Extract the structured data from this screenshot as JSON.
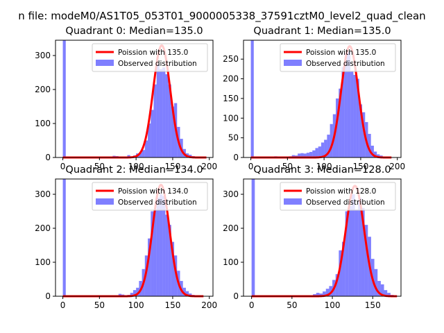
{
  "figure": {
    "suptitle": "n file: modeM0/AS1T05_053T01_9000005338_37591cztM0_level2_quad_clean"
  },
  "colors": {
    "hist": "#0000ff",
    "hist_opacity": 0.5,
    "fit": "#ff0000",
    "axis": "#000000"
  },
  "chart_data": [
    {
      "type": "bar",
      "title": "Quadrant 0: Median=135.0",
      "legend": [
        "Poission with 135.0",
        "Observed distribution"
      ],
      "legend_position": "top-right",
      "xlim": [
        -10,
        205
      ],
      "ylim": [
        0,
        345
      ],
      "xticks": [
        0,
        50,
        100,
        150,
        200
      ],
      "yticks": [
        0,
        100,
        200,
        300
      ],
      "hist_bin_width": 4,
      "hist": [
        [
          0,
          345
        ],
        [
          4,
          1
        ],
        [
          8,
          1
        ],
        [
          12,
          1
        ],
        [
          16,
          1
        ],
        [
          20,
          1
        ],
        [
          24,
          1
        ],
        [
          28,
          1
        ],
        [
          32,
          1
        ],
        [
          36,
          1
        ],
        [
          40,
          1
        ],
        [
          44,
          1
        ],
        [
          48,
          1
        ],
        [
          52,
          1
        ],
        [
          56,
          1
        ],
        [
          60,
          1
        ],
        [
          64,
          1
        ],
        [
          68,
          5
        ],
        [
          72,
          4
        ],
        [
          76,
          3
        ],
        [
          80,
          2
        ],
        [
          84,
          3
        ],
        [
          88,
          7
        ],
        [
          92,
          3
        ],
        [
          96,
          6
        ],
        [
          100,
          12
        ],
        [
          104,
          14
        ],
        [
          108,
          22
        ],
        [
          112,
          50
        ],
        [
          116,
          100
        ],
        [
          120,
          140
        ],
        [
          124,
          215
        ],
        [
          128,
          275
        ],
        [
          132,
          260
        ],
        [
          136,
          265
        ],
        [
          140,
          245
        ],
        [
          144,
          215
        ],
        [
          148,
          150
        ],
        [
          152,
          160
        ],
        [
          156,
          90
        ],
        [
          160,
          55
        ],
        [
          164,
          25
        ],
        [
          168,
          12
        ],
        [
          172,
          8
        ],
        [
          176,
          4
        ],
        [
          180,
          3
        ],
        [
          184,
          1
        ],
        [
          188,
          1
        ],
        [
          192,
          1
        ]
      ],
      "fit_mean": 135.0,
      "fit_peak": 330,
      "fit_range": [
        0,
        196
      ]
    },
    {
      "type": "bar",
      "title": "Quadrant 1: Median=135.0",
      "legend": [
        "Poission with 135.0",
        "Observed distribution"
      ],
      "legend_position": "top-right",
      "xlim": [
        -10,
        205
      ],
      "ylim": [
        0,
        298
      ],
      "xticks": [
        0,
        50,
        100,
        150,
        200
      ],
      "yticks": [
        0,
        50,
        100,
        150,
        200,
        250
      ],
      "hist_bin_width": 4,
      "hist": [
        [
          0,
          300
        ],
        [
          4,
          1
        ],
        [
          8,
          1
        ],
        [
          12,
          2
        ],
        [
          16,
          1
        ],
        [
          20,
          2
        ],
        [
          24,
          2
        ],
        [
          28,
          1
        ],
        [
          32,
          3
        ],
        [
          36,
          2
        ],
        [
          40,
          1
        ],
        [
          44,
          1
        ],
        [
          48,
          2
        ],
        [
          52,
          3
        ],
        [
          56,
          6
        ],
        [
          60,
          5
        ],
        [
          64,
          10
        ],
        [
          68,
          11
        ],
        [
          72,
          10
        ],
        [
          76,
          12
        ],
        [
          80,
          14
        ],
        [
          84,
          18
        ],
        [
          88,
          24
        ],
        [
          92,
          28
        ],
        [
          96,
          38
        ],
        [
          100,
          45
        ],
        [
          104,
          58
        ],
        [
          108,
          85
        ],
        [
          112,
          110
        ],
        [
          116,
          150
        ],
        [
          120,
          175
        ],
        [
          124,
          230
        ],
        [
          128,
          265
        ],
        [
          132,
          268
        ],
        [
          136,
          220
        ],
        [
          140,
          210
        ],
        [
          144,
          200
        ],
        [
          148,
          135
        ],
        [
          152,
          115
        ],
        [
          156,
          90
        ],
        [
          160,
          60
        ],
        [
          164,
          30
        ],
        [
          168,
          15
        ],
        [
          172,
          8
        ],
        [
          176,
          5
        ],
        [
          180,
          2
        ],
        [
          184,
          1
        ],
        [
          188,
          1
        ]
      ],
      "fit_mean": 135.0,
      "fit_peak": 283,
      "fit_range": [
        0,
        192
      ]
    },
    {
      "type": "bar",
      "title": "Quadrant 2: Median=134.0",
      "legend": [
        "Poission with 134.0",
        "Observed distribution"
      ],
      "legend_position": "top-right",
      "xlim": [
        -10,
        205
      ],
      "ylim": [
        0,
        345
      ],
      "xticks": [
        0,
        50,
        100,
        150,
        200
      ],
      "yticks": [
        0,
        100,
        200,
        300
      ],
      "hist_bin_width": 4,
      "hist": [
        [
          0,
          345
        ],
        [
          4,
          1
        ],
        [
          8,
          1
        ],
        [
          12,
          1
        ],
        [
          16,
          1
        ],
        [
          20,
          1
        ],
        [
          24,
          1
        ],
        [
          28,
          1
        ],
        [
          32,
          1
        ],
        [
          36,
          1
        ],
        [
          40,
          1
        ],
        [
          44,
          1
        ],
        [
          48,
          1
        ],
        [
          52,
          1
        ],
        [
          56,
          1
        ],
        [
          60,
          1
        ],
        [
          64,
          1
        ],
        [
          68,
          2
        ],
        [
          72,
          1
        ],
        [
          76,
          7
        ],
        [
          80,
          5
        ],
        [
          84,
          3
        ],
        [
          88,
          4
        ],
        [
          92,
          10
        ],
        [
          96,
          18
        ],
        [
          100,
          25
        ],
        [
          104,
          45
        ],
        [
          108,
          80
        ],
        [
          112,
          120
        ],
        [
          116,
          170
        ],
        [
          120,
          250
        ],
        [
          124,
          255
        ],
        [
          128,
          290
        ],
        [
          132,
          300
        ],
        [
          136,
          295
        ],
        [
          140,
          240
        ],
        [
          144,
          210
        ],
        [
          148,
          160
        ],
        [
          152,
          120
        ],
        [
          156,
          75
        ],
        [
          160,
          45
        ],
        [
          164,
          25
        ],
        [
          168,
          15
        ],
        [
          172,
          8
        ],
        [
          176,
          4
        ],
        [
          180,
          2
        ],
        [
          184,
          1
        ],
        [
          188,
          1
        ]
      ],
      "fit_mean": 134.0,
      "fit_peak": 328,
      "fit_range": [
        0,
        192
      ]
    },
    {
      "type": "bar",
      "title": "Quadrant 3: Median=128.0",
      "legend": [
        "Poission with 128.0",
        "Observed distribution"
      ],
      "legend_position": "top-right",
      "xlim": [
        -10,
        185
      ],
      "ylim": [
        0,
        345
      ],
      "xticks": [
        0,
        50,
        100,
        150
      ],
      "yticks": [
        0,
        100,
        200,
        300
      ],
      "hist_bin_width": 4,
      "hist": [
        [
          0,
          345
        ],
        [
          4,
          1
        ],
        [
          8,
          1
        ],
        [
          12,
          1
        ],
        [
          16,
          1
        ],
        [
          20,
          1
        ],
        [
          24,
          1
        ],
        [
          28,
          1
        ],
        [
          32,
          1
        ],
        [
          36,
          1
        ],
        [
          40,
          1
        ],
        [
          44,
          1
        ],
        [
          48,
          1
        ],
        [
          52,
          1
        ],
        [
          56,
          1
        ],
        [
          60,
          2
        ],
        [
          64,
          1
        ],
        [
          68,
          1
        ],
        [
          72,
          2
        ],
        [
          76,
          6
        ],
        [
          80,
          10
        ],
        [
          84,
          8
        ],
        [
          88,
          14
        ],
        [
          92,
          22
        ],
        [
          96,
          30
        ],
        [
          100,
          48
        ],
        [
          104,
          65
        ],
        [
          108,
          135
        ],
        [
          112,
          160
        ],
        [
          116,
          250
        ],
        [
          120,
          265
        ],
        [
          124,
          300
        ],
        [
          128,
          255
        ],
        [
          132,
          290
        ],
        [
          136,
          260
        ],
        [
          140,
          210
        ],
        [
          144,
          175
        ],
        [
          148,
          110
        ],
        [
          152,
          80
        ],
        [
          156,
          45
        ],
        [
          160,
          35
        ],
        [
          164,
          18
        ],
        [
          168,
          10
        ],
        [
          172,
          4
        ],
        [
          176,
          2
        ]
      ],
      "fit_mean": 128.0,
      "fit_peak": 325,
      "fit_range": [
        0,
        180
      ]
    }
  ]
}
